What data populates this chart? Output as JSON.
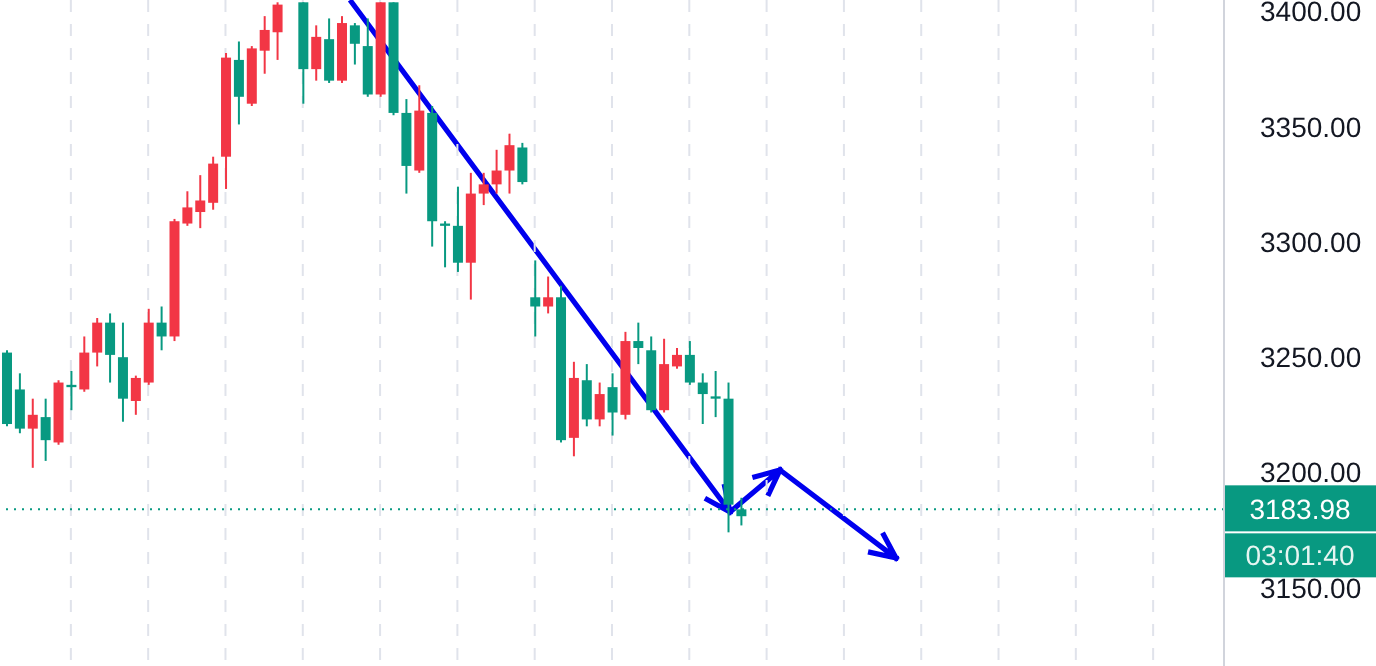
{
  "chart_data": {
    "type": "candlestick",
    "categories": [
      null,
      null,
      null,
      null,
      null,
      null,
      null,
      null,
      null,
      null,
      null,
      null,
      null,
      null,
      null,
      null,
      null,
      null,
      null,
      null,
      null,
      null,
      null,
      null,
      null,
      null,
      null,
      null,
      null,
      null,
      null,
      null,
      null,
      null,
      null,
      null,
      null,
      null,
      null,
      null,
      null,
      null,
      null,
      null,
      null,
      null,
      null,
      null,
      null,
      null,
      null,
      null,
      null,
      null,
      null,
      null,
      null,
      null,
      null,
      null,
      null,
      null,
      null,
      null,
      null,
      null,
      null,
      null,
      null,
      null,
      null,
      null,
      null,
      null,
      null,
      null,
      null,
      null,
      null,
      null,
      null,
      null,
      null,
      null,
      null,
      null,
      null,
      null,
      null,
      null,
      null,
      null,
      null,
      null,
      null
    ],
    "ohlc": [
      [
        3221,
        3253,
        3220,
        3252
      ],
      [
        3219,
        3243,
        3217,
        3236
      ],
      [
        3225,
        3232,
        3202,
        3219
      ],
      [
        3214,
        3232,
        3205,
        3224
      ],
      [
        3239,
        3240,
        3212,
        3213
      ],
      [
        3237,
        3244,
        3227,
        3238
      ],
      [
        3252,
        3259,
        3235,
        3236
      ],
      [
        3265,
        3267,
        3246,
        3252
      ],
      [
        3251,
        3269,
        3239,
        3265
      ],
      [
        3232,
        3265,
        3222,
        3250
      ],
      [
        3241,
        3242,
        3225,
        3231
      ],
      [
        3265,
        3271,
        3238,
        3239
      ],
      [
        3259,
        3272,
        3253,
        3265
      ],
      [
        3309,
        3310,
        3257,
        3259
      ],
      [
        3315,
        3322,
        3307,
        3308
      ],
      [
        3318,
        3329,
        3306,
        3313
      ],
      [
        3334,
        3337,
        3314,
        3317
      ],
      [
        3380,
        3382,
        3323,
        3337
      ],
      [
        3363,
        3387,
        3351,
        3379
      ],
      [
        3384,
        3385,
        3359,
        3360
      ],
      [
        3392,
        3398,
        3373,
        3383
      ],
      [
        3403,
        3404,
        3379,
        3391
      ],
      null,
      [
        3375,
        3404,
        3360,
        3404
      ],
      [
        3389,
        3394,
        3370,
        3375
      ],
      [
        3370,
        3397,
        3369,
        3388
      ],
      [
        3395,
        3398,
        3369,
        3370
      ],
      [
        3386,
        3395,
        3377,
        3394
      ],
      [
        3364,
        3397,
        3363,
        3385
      ],
      [
        3404,
        3404,
        3363,
        3364
      ],
      [
        3356,
        3404,
        3355,
        3404
      ],
      [
        3333,
        3362,
        3321,
        3356
      ],
      [
        3357,
        3368,
        3330,
        3331
      ],
      [
        3309,
        3359,
        3298,
        3356
      ],
      [
        3307,
        3309,
        3289,
        3308
      ],
      [
        3291,
        3324,
        3287,
        3307
      ],
      [
        3321,
        3330,
        3275,
        3291
      ],
      [
        3325,
        3330,
        3316,
        3321
      ],
      [
        3331,
        3340,
        3321,
        3325
      ],
      [
        3342,
        3347,
        3321,
        3331
      ],
      [
        3326,
        3343,
        3325,
        3341
      ],
      [
        3272,
        3292,
        3259,
        3276
      ],
      [
        3276,
        3285,
        3269,
        3272
      ],
      [
        3214,
        3281,
        3213,
        3276
      ],
      [
        3241,
        3248,
        3207,
        3215
      ],
      [
        3223,
        3247,
        3220,
        3240
      ],
      [
        3234,
        3239,
        3220,
        3223
      ],
      [
        3226,
        3243,
        3216,
        3237
      ],
      [
        3257,
        3261,
        3223,
        3225
      ],
      [
        3254,
        3265,
        3247,
        3257
      ],
      [
        3227,
        3259,
        3226,
        3253
      ],
      [
        3247,
        3258,
        3226,
        3227
      ],
      [
        3251,
        3254,
        3245,
        3246
      ],
      [
        3239,
        3257,
        3238,
        3251
      ],
      [
        3234,
        3243,
        3221,
        3239
      ],
      [
        3232,
        3244,
        3224,
        3233
      ],
      [
        3186,
        3239,
        3174,
        3232
      ],
      [
        3181,
        3189,
        3177,
        3183.98
      ],
      null,
      null,
      null,
      null,
      null,
      null,
      null,
      null,
      null,
      null,
      null,
      null,
      null,
      null,
      null,
      null,
      null,
      null,
      null,
      null,
      null,
      null,
      null,
      null,
      null,
      null,
      null,
      null,
      null,
      null,
      null,
      null,
      null,
      null,
      null,
      null,
      null
    ],
    "colors": [
      "#089981",
      "#089981",
      "#f23645",
      "#089981",
      "#f23645",
      "#089981",
      "#f23645",
      "#f23645",
      "#089981",
      "#089981",
      "#f23645",
      "#f23645",
      "#089981",
      "#f23645",
      "#f23645",
      "#f23645",
      "#f23645",
      "#f23645",
      "#089981",
      "#f23645",
      "#f23645",
      "#f23645",
      null,
      "#089981",
      "#f23645",
      "#089981",
      "#f23645",
      "#089981",
      "#089981",
      "#f23645",
      "#089981",
      "#089981",
      "#f23645",
      "#089981",
      "#089981",
      "#089981",
      "#f23645",
      "#f23645",
      "#f23645",
      "#f23645",
      "#089981",
      "#089981",
      "#f23645",
      "#089981",
      "#f23645",
      "#089981",
      "#f23645",
      "#089981",
      "#f23645",
      "#089981",
      "#089981",
      "#f23645",
      "#f23645",
      "#089981",
      "#089981",
      "#089981",
      "#089981",
      "#089981",
      null,
      null,
      null,
      null,
      null,
      null,
      null,
      null,
      null,
      null,
      null,
      null,
      null,
      null,
      null,
      null,
      null,
      null,
      null,
      null,
      null,
      null,
      null,
      null,
      null,
      null,
      null,
      null,
      null,
      null,
      null,
      null,
      null,
      null,
      null,
      null,
      null
    ],
    "ylim": [
      3116,
      3405
    ],
    "yticks": [
      {
        "value": 3150,
        "label": "3150.00"
      },
      {
        "value": 3200,
        "label": "3200.00"
      },
      {
        "value": 3250,
        "label": "3250.00"
      },
      {
        "value": 3300,
        "label": "3300.00"
      },
      {
        "value": 3350,
        "label": "3350.00"
      },
      {
        "value": 3400,
        "label": "3400.00"
      }
    ],
    "ref_lines": [
      {
        "axis": "y",
        "value": 3183.98,
        "label": "3183.98",
        "color": "#089981",
        "line_style": "dotted"
      }
    ],
    "annotations": [
      "03:01:40"
    ],
    "grid": "x"
  }
}
